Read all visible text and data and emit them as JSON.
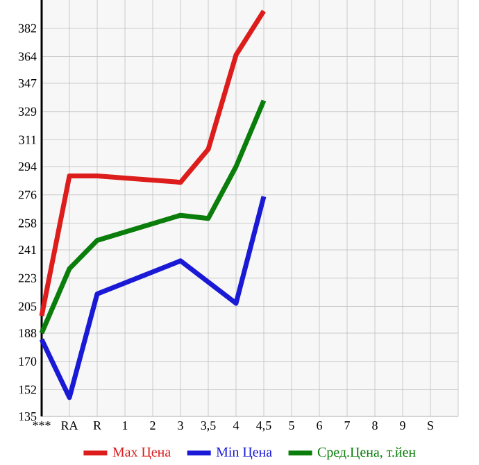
{
  "chart_data": {
    "type": "line",
    "categories": [
      "***",
      "RA",
      "R",
      "1",
      "2",
      "3",
      "3,5",
      "4",
      "4,5",
      "5",
      "6",
      "7",
      "8",
      "9",
      "S"
    ],
    "series": [
      {
        "name": "Max Цена",
        "color": "#dd1c1c",
        "values": [
          199,
          288,
          288,
          null,
          null,
          284,
          305,
          365,
          393,
          null,
          null,
          null,
          null,
          null,
          null
        ]
      },
      {
        "name": "Min Цена",
        "color": "#1a1ad6",
        "values": [
          184,
          147,
          213,
          null,
          null,
          234,
          null,
          207,
          275,
          null,
          null,
          null,
          null,
          null,
          null
        ]
      },
      {
        "name": "Сред.Цена, т.йен",
        "color": "#0a7d0a",
        "values": [
          188,
          229,
          247,
          null,
          null,
          263,
          261,
          294,
          336,
          null,
          null,
          null,
          null,
          null,
          null
        ]
      }
    ],
    "ylim": [
      135,
      400
    ],
    "yticks": [
      135,
      152,
      170,
      188,
      205,
      223,
      241,
      258,
      276,
      294,
      311,
      329,
      347,
      364,
      382
    ],
    "grid": true,
    "legend": "bottom"
  }
}
